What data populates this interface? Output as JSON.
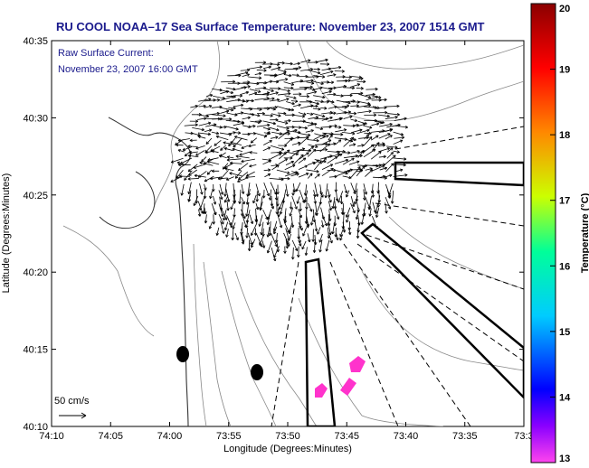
{
  "title": "RU COOL  NOAA–17  Sea Surface Temperature:  November 23, 2007 1514 GMT",
  "current_label": {
    "line1": "Raw Surface Current:",
    "line2": "November 23, 2007 16:00 GMT"
  },
  "scale_label": "50 cm/s",
  "axes": {
    "xlabel": "Longitude (Degrees:Minutes)",
    "ylabel": "Latitude (Degrees:Minutes)",
    "x_ticks": [
      "74:10",
      "74:05",
      "74:00",
      "73:55",
      "73:50",
      "73:45",
      "73:40",
      "73:35",
      "73:3"
    ],
    "y_ticks": [
      "40:35",
      "40:30",
      "40:25",
      "40:20",
      "40:15",
      "40:10"
    ]
  },
  "colorbar": {
    "label": "Temperature (°C)",
    "min": 13,
    "max": 20,
    "ticks": [
      "20",
      "19",
      "18",
      "17",
      "16",
      "15",
      "14",
      "13"
    ],
    "colors": [
      "#ff44ee",
      "#8a00ff",
      "#0000ff",
      "#00ccff",
      "#00ff99",
      "#ccff00",
      "#ff8800",
      "#ff0000",
      "#8b0000"
    ]
  },
  "colors": {
    "title": "#1a1a8c",
    "vectors": "#000000",
    "contours": "#888888",
    "sst_patch": "#ff33cc"
  }
}
